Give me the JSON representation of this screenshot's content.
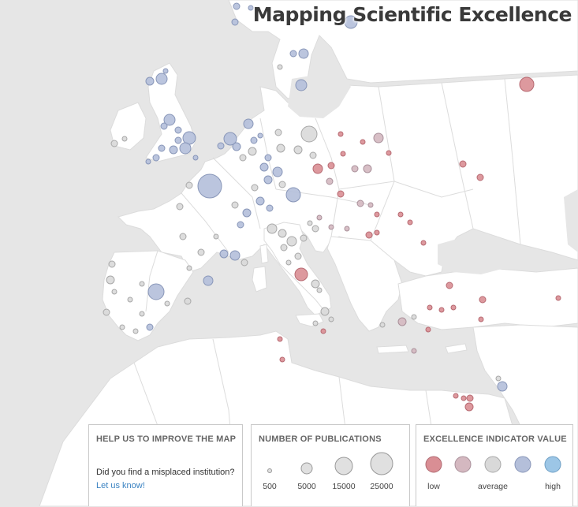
{
  "title": "Mapping Scientific Excellence",
  "colors": {
    "sea": "#e6e6e6",
    "land": "#ffffff",
    "border": "#dadada",
    "low": "#d98e94",
    "below": "#d4b8c0",
    "average": "#d9d9d9",
    "above": "#b4bfda",
    "high": "#9cc6e6"
  },
  "help_panel": {
    "heading": "HELP US TO IMPROVE THE MAP",
    "text": "Did you find a misplaced institution?",
    "link": "Let us know!"
  },
  "publications_legend": {
    "heading": "NUMBER OF PUBLICATIONS",
    "items": [
      {
        "label": "500",
        "value": 500
      },
      {
        "label": "5000",
        "value": 5000
      },
      {
        "label": "15000",
        "value": 15000
      },
      {
        "label": "25000",
        "value": 25000
      }
    ]
  },
  "excellence_legend": {
    "heading": "EXCELLENCE INDICATOR VALUE",
    "items": [
      {
        "label": "low",
        "color": "#d98e94"
      },
      {
        "label": "",
        "color": "#d4b8c0"
      },
      {
        "label": "average",
        "color": "#d9d9d9"
      },
      {
        "label": "",
        "color": "#b4bfda"
      },
      {
        "label": "high",
        "color": "#9cc6e6"
      }
    ]
  }
}
